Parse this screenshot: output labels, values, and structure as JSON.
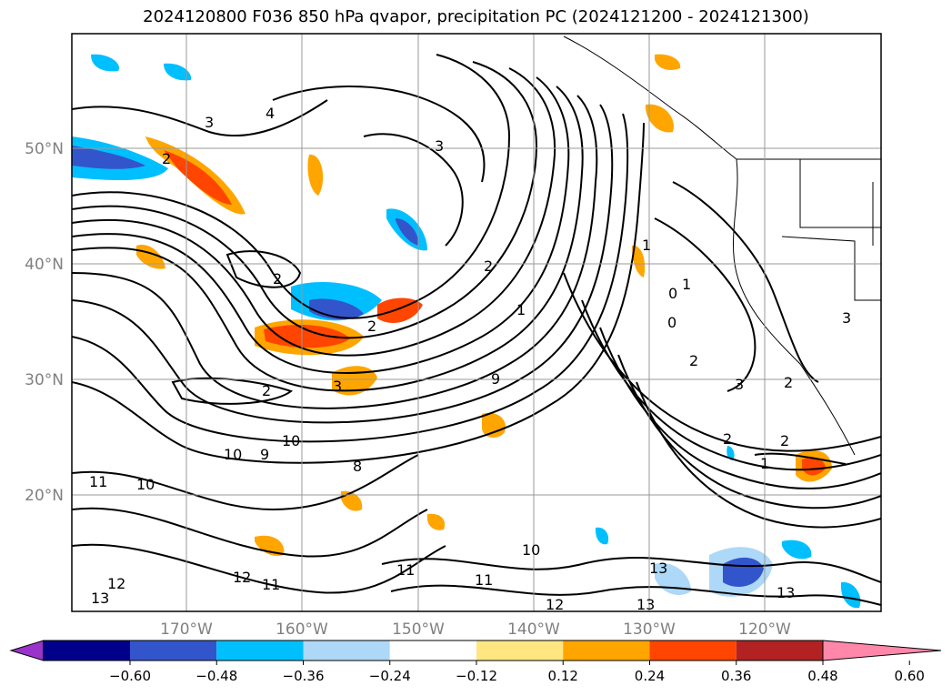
{
  "title": "2024120800 F036 850 hPa qvapor, precipitation PC (2024121200 - 2024121300)",
  "axes": {
    "lat_labels": [
      "50°N",
      "40°N",
      "30°N",
      "20°N"
    ],
    "lon_labels": [
      "170°W",
      "160°W",
      "150°W",
      "140°W",
      "130°W",
      "120°W"
    ]
  },
  "contour_labels": [
    "2",
    "3",
    "4",
    "3",
    "2",
    "2",
    "3",
    "1",
    "2",
    "2",
    "9",
    "10",
    "11",
    "10",
    "9",
    "8",
    "10",
    "11",
    "12",
    "13",
    "12",
    "13",
    "11",
    "10",
    "11",
    "12",
    "13",
    "13",
    "2",
    "2",
    "1",
    "1",
    "0",
    "1",
    "0",
    "2",
    "3",
    "2",
    "3"
  ],
  "colorbar": {
    "ticks": [
      "−0.60",
      "−0.48",
      "−0.36",
      "−0.24",
      "−0.12",
      "0.12",
      "0.24",
      "0.36",
      "0.48",
      "0.60"
    ],
    "colors": [
      "#9933cc",
      "#00008b",
      "#3355cc",
      "#00bfff",
      "#add8f7",
      "#ffffff",
      "#ffe680",
      "#ffa500",
      "#ff4500",
      "#b22222",
      "#ff88aa"
    ]
  }
}
